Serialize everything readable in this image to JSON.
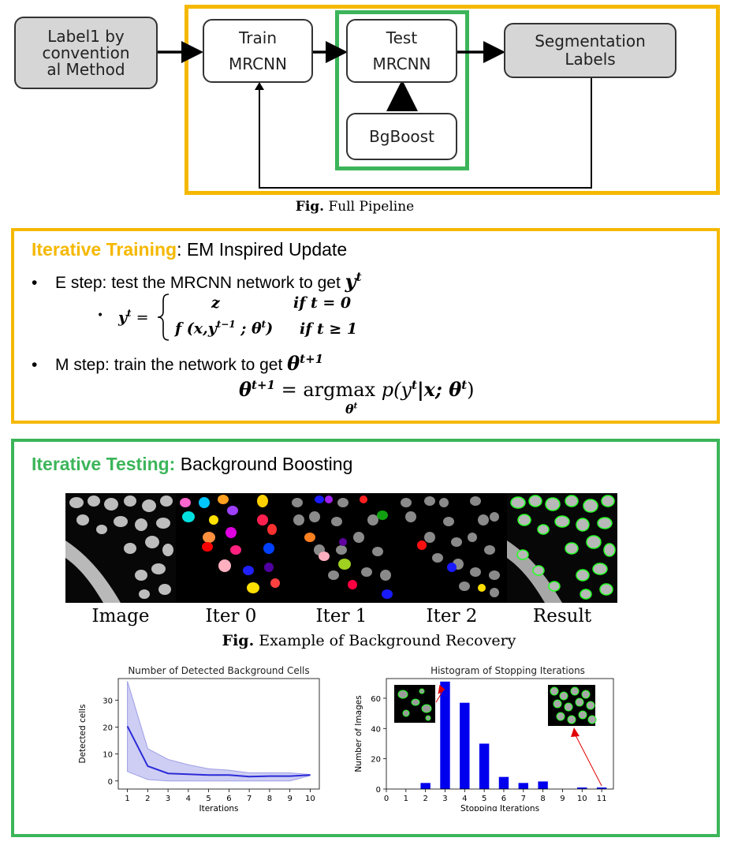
{
  "pipeline": {
    "label_box": "Label1 by\nconvention\nal Method",
    "train_box": [
      "Train",
      "MRCNN"
    ],
    "test_box": [
      "Test",
      "MRCNN"
    ],
    "seg_box": [
      "Segmentation",
      "Labels"
    ],
    "bgboost_box": "BgBoost",
    "caption_bold": "Fig.",
    "caption_text": " Full Pipeline"
  },
  "training": {
    "heading_colored": "Iterative Training",
    "heading_rest": ": EM Inspired Update",
    "estep_text": "E step: test the MRCNN network to get ",
    "mstep_text": "M step: train the network to get ",
    "y_sym": "y",
    "t_sup": "t",
    "theta_sym": "θ",
    "theta_sup": "t+1",
    "case1_val": "z",
    "case1_cond": "if t = 0",
    "case2_val": "f (x,y",
    "case2_sup": "t−1",
    "case2_rest": " ; θ",
    "case2_cond": "if t ≥ 1",
    "argmax": "argmax",
    "argmax_rest": "p(y",
    "argmax_mid": "|x; θ",
    "argmax_close": ")",
    "argmax_sub": "θ",
    "colors": {
      "training": "#f5b800",
      "testing": "#3cb55a"
    }
  },
  "testing": {
    "heading_colored": "Iterative Testing:",
    "heading_rest": " Background Boosting",
    "tile_labels": [
      "Image",
      "Iter 0",
      "Iter 1",
      "Iter 2",
      "Result"
    ],
    "caption_bold": "Fig.",
    "caption_text": " Example of Background Recovery"
  },
  "chart_data": [
    {
      "type": "line",
      "title": "Number of Detected Background Cells",
      "xlabel": "Iterations",
      "ylabel": "Detected cells",
      "x": [
        1,
        2,
        3,
        4,
        5,
        6,
        7,
        8,
        9,
        10
      ],
      "series": [
        {
          "values": [
            20.3,
            5.5,
            2.8,
            2.5,
            2.2,
            2.2,
            1.6,
            1.8,
            1.8,
            2.2
          ]
        }
      ],
      "band_upper": [
        37,
        12,
        8,
        6,
        4.5,
        4,
        3,
        3,
        3,
        2.4
      ],
      "band_lower": [
        3.5,
        0.5,
        0,
        0,
        0,
        0,
        0,
        0,
        0,
        2.0
      ],
      "xticks": [
        "1",
        "2",
        "3",
        "4",
        "5",
        "6",
        "7",
        "8",
        "9",
        "10"
      ],
      "yticks": [
        "0",
        "10",
        "20",
        "30"
      ],
      "ylim": [
        -3,
        38
      ],
      "xlim": [
        0.55,
        10.45
      ],
      "color": "#2b2bd8",
      "grid": false
    },
    {
      "type": "bar",
      "title": "Histogram of Stopping Iterations",
      "xlabel": "Stopping Iterations",
      "ylabel": "Number of Images",
      "categories": [
        0,
        1,
        2,
        3,
        4,
        5,
        6,
        7,
        8,
        9,
        10,
        11
      ],
      "values": [
        0,
        0,
        4,
        71,
        57,
        30,
        8,
        4,
        5,
        0,
        1,
        1
      ],
      "xticks": [
        "0",
        "1",
        "2",
        "3",
        "4",
        "5",
        "6",
        "7",
        "8",
        "9",
        "10",
        "11"
      ],
      "yticks": [
        "0",
        "20",
        "40",
        "60"
      ],
      "ylim": [
        0,
        73
      ],
      "xlim": [
        0,
        11.6
      ],
      "color": "#0000ee",
      "grid": false
    }
  ]
}
